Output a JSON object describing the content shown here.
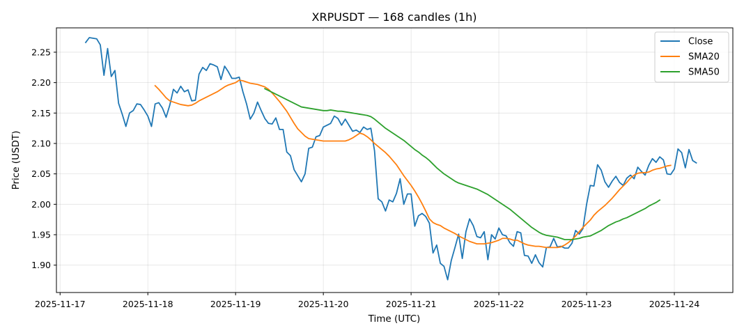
{
  "chart_data": {
    "type": "line",
    "title": "XRPUSDT — 168 candles (1h)",
    "xlabel": "Time (UTC)",
    "ylabel": "Price (USDT)",
    "x_start": "2025-11-17T07:00:00Z",
    "x_interval_hours": 1,
    "xlim": [
      "2025-11-16T23:00:00Z",
      "2025-11-24T16:00:00Z"
    ],
    "ylim": [
      1.855,
      2.29
    ],
    "x_ticks": [
      "2025-11-17",
      "2025-11-18",
      "2025-11-19",
      "2025-11-20",
      "2025-11-21",
      "2025-11-22",
      "2025-11-23",
      "2025-11-24"
    ],
    "y_ticks": [
      "1.90",
      "1.95",
      "2.00",
      "2.05",
      "2.10",
      "2.15",
      "2.20",
      "2.25"
    ],
    "grid": true,
    "legend_position": "top-right",
    "series": [
      {
        "name": "Close",
        "color": "#1f77b4",
        "values": [
          2.266,
          2.274,
          2.273,
          2.272,
          2.262,
          2.212,
          2.256,
          2.21,
          2.22,
          2.166,
          2.148,
          2.128,
          2.15,
          2.154,
          2.165,
          2.164,
          2.155,
          2.145,
          2.128,
          2.165,
          2.167,
          2.158,
          2.143,
          2.163,
          2.189,
          2.183,
          2.194,
          2.185,
          2.188,
          2.17,
          2.171,
          2.214,
          2.225,
          2.22,
          2.231,
          2.229,
          2.226,
          2.205,
          2.227,
          2.218,
          2.207,
          2.207,
          2.209,
          2.185,
          2.165,
          2.14,
          2.15,
          2.168,
          2.154,
          2.141,
          2.133,
          2.132,
          2.142,
          2.123,
          2.123,
          2.086,
          2.08,
          2.057,
          2.047,
          2.037,
          2.05,
          2.092,
          2.094,
          2.111,
          2.113,
          2.127,
          2.13,
          2.133,
          2.145,
          2.141,
          2.13,
          2.14,
          2.13,
          2.12,
          2.122,
          2.118,
          2.127,
          2.123,
          2.125,
          2.088,
          2.009,
          2.004,
          1.989,
          2.007,
          2.004,
          2.018,
          2.042,
          2.0,
          2.017,
          2.017,
          1.964,
          1.981,
          1.985,
          1.98,
          1.969,
          1.92,
          1.933,
          1.903,
          1.898,
          1.876,
          1.908,
          1.929,
          1.951,
          1.911,
          1.955,
          1.976,
          1.965,
          1.947,
          1.945,
          1.955,
          1.909,
          1.95,
          1.943,
          1.961,
          1.95,
          1.948,
          1.937,
          1.931,
          1.955,
          1.953,
          1.916,
          1.915,
          1.903,
          1.917,
          1.904,
          1.897,
          1.929,
          1.93,
          1.944,
          1.93,
          1.931,
          1.928,
          1.928,
          1.936,
          1.957,
          1.951,
          1.96,
          2.0,
          2.031,
          2.03,
          2.065,
          2.056,
          2.037,
          2.028,
          2.038,
          2.046,
          2.036,
          2.031,
          2.043,
          2.048,
          2.042,
          2.061,
          2.054,
          2.048,
          2.064,
          2.075,
          2.069,
          2.078,
          2.073,
          2.05,
          2.049,
          2.058,
          2.091,
          2.085,
          2.06,
          2.09,
          2.072,
          2.068
        ]
      },
      {
        "name": "SMA20",
        "color": "#ff7f0e",
        "start_index": 19,
        "values": [
          2.195,
          2.189,
          2.182,
          2.175,
          2.17,
          2.168,
          2.166,
          2.164,
          2.163,
          2.162,
          2.163,
          2.166,
          2.17,
          2.173,
          2.176,
          2.179,
          2.182,
          2.185,
          2.189,
          2.193,
          2.196,
          2.198,
          2.2,
          2.204,
          2.203,
          2.201,
          2.199,
          2.198,
          2.197,
          2.195,
          2.193,
          2.189,
          2.183,
          2.176,
          2.169,
          2.161,
          2.153,
          2.143,
          2.133,
          2.124,
          2.118,
          2.112,
          2.108,
          2.107,
          2.106,
          2.105,
          2.104,
          2.104,
          2.104,
          2.104,
          2.104,
          2.104,
          2.104,
          2.106,
          2.109,
          2.113,
          2.117,
          2.115,
          2.111,
          2.106,
          2.1,
          2.095,
          2.09,
          2.085,
          2.079,
          2.072,
          2.065,
          2.056,
          2.047,
          2.039,
          2.031,
          2.022,
          2.012,
          2.001,
          1.989,
          1.976,
          1.97,
          1.967,
          1.965,
          1.961,
          1.958,
          1.955,
          1.952,
          1.948,
          1.945,
          1.942,
          1.939,
          1.937,
          1.935,
          1.935,
          1.935,
          1.936,
          1.937,
          1.939,
          1.941,
          1.944,
          1.944,
          1.943,
          1.941,
          1.941,
          1.938,
          1.935,
          1.933,
          1.932,
          1.931,
          1.931,
          1.93,
          1.929,
          1.929,
          1.929,
          1.929,
          1.93,
          1.933,
          1.937,
          1.942,
          1.948,
          1.955,
          1.962,
          1.968,
          1.974,
          1.982,
          1.988,
          1.993,
          1.998,
          2.004,
          2.01,
          2.017,
          2.024,
          2.03,
          2.036,
          2.043,
          2.048,
          2.051,
          2.052,
          2.052,
          2.053,
          2.056,
          2.058,
          2.059,
          2.061,
          2.063,
          2.064
        ]
      },
      {
        "name": "SMA50",
        "color": "#2ca02c",
        "start_index": 49,
        "values": [
          2.19,
          2.187,
          2.184,
          2.181,
          2.178,
          2.175,
          2.172,
          2.169,
          2.166,
          2.163,
          2.16,
          2.159,
          2.158,
          2.157,
          2.156,
          2.155,
          2.154,
          2.154,
          2.155,
          2.154,
          2.153,
          2.153,
          2.152,
          2.151,
          2.15,
          2.149,
          2.148,
          2.147,
          2.146,
          2.144,
          2.14,
          2.135,
          2.13,
          2.125,
          2.121,
          2.117,
          2.113,
          2.109,
          2.105,
          2.1,
          2.095,
          2.09,
          2.086,
          2.081,
          2.077,
          2.072,
          2.066,
          2.06,
          2.055,
          2.05,
          2.046,
          2.042,
          2.038,
          2.035,
          2.033,
          2.031,
          2.029,
          2.027,
          2.025,
          2.022,
          2.019,
          2.016,
          2.012,
          2.008,
          2.004,
          2.0,
          1.996,
          1.992,
          1.987,
          1.982,
          1.977,
          1.972,
          1.967,
          1.962,
          1.958,
          1.954,
          1.951,
          1.949,
          1.948,
          1.947,
          1.946,
          1.944,
          1.942,
          1.942,
          1.942,
          1.943,
          1.944,
          1.946,
          1.947,
          1.948,
          1.951,
          1.954,
          1.957,
          1.961,
          1.965,
          1.968,
          1.971,
          1.973,
          1.976,
          1.978,
          1.981,
          1.984,
          1.987,
          1.99,
          1.993,
          1.997,
          2.0,
          2.003,
          2.007
        ]
      }
    ]
  }
}
